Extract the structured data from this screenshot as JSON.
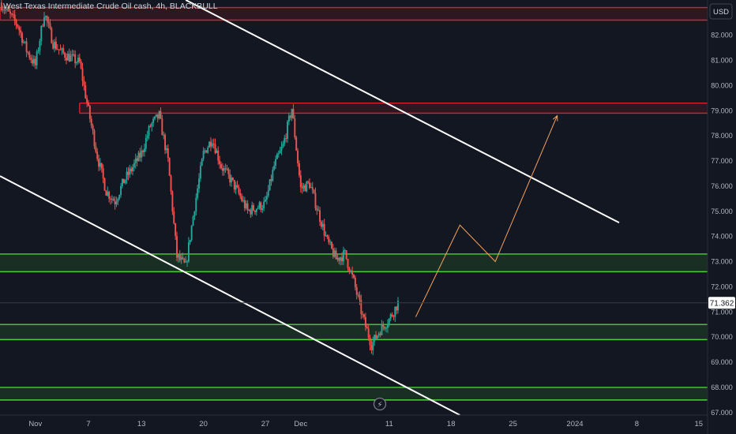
{
  "title": "West Texas Intermediate Crude Oil cash, 4h, BLACKBULL",
  "currency": "USD",
  "current_price": "71.362",
  "colors": {
    "background": "#131722",
    "up": "#26a69a",
    "down": "#ef5350",
    "resistance": "#e01e26",
    "support": "#4cd137",
    "trendline": "#ffffff",
    "projection": "#f5a25d",
    "price_tag_bg": "#ffffff",
    "event_icon": "#787b86"
  },
  "icons": {
    "event_marker": "lightning-icon"
  },
  "chart_data": {
    "type": "candlestick",
    "title": "West Texas Intermediate Crude Oil cash, 4h, BLACKBULL",
    "ylim": [
      66.9,
      83.4
    ],
    "yticks": [
      67,
      68,
      69,
      70,
      71,
      72,
      73,
      74,
      75,
      76,
      77,
      78,
      79,
      80,
      81,
      82
    ],
    "ytick_labels": [
      "67.000",
      "68.000",
      "69.000",
      "70.000",
      "71.000",
      "72.000",
      "73.000",
      "74.000",
      "75.000",
      "76.000",
      "77.000",
      "78.000",
      "79.000",
      "80.000",
      "81.000",
      "82.000"
    ],
    "x_range": [
      "2023-10-28",
      "2024-01-16"
    ],
    "xticks": [
      {
        "date": "2023-11-01",
        "label": "Nov"
      },
      {
        "date": "2023-11-07",
        "label": "7"
      },
      {
        "date": "2023-11-13",
        "label": "13"
      },
      {
        "date": "2023-11-20",
        "label": "20"
      },
      {
        "date": "2023-11-27",
        "label": "27"
      },
      {
        "date": "2023-12-01",
        "label": "Dec"
      },
      {
        "date": "2023-12-11",
        "label": "11"
      },
      {
        "date": "2023-12-18",
        "label": "18"
      },
      {
        "date": "2023-12-25",
        "label": "25"
      },
      {
        "date": "2024-01-01",
        "label": "2024"
      },
      {
        "date": "2024-01-08",
        "label": "8"
      },
      {
        "date": "2024-01-15",
        "label": "15"
      }
    ],
    "price_anchors": [
      [
        "2023-10-28",
        83.3
      ],
      [
        "2023-10-30",
        82.4
      ],
      [
        "2023-10-31",
        81.4
      ],
      [
        "2023-11-01",
        80.8
      ],
      [
        "2023-11-02",
        82.9
      ],
      [
        "2023-11-03",
        81.7
      ],
      [
        "2023-11-04",
        81.3
      ],
      [
        "2023-11-06",
        80.9
      ],
      [
        "2023-11-07",
        79.0
      ],
      [
        "2023-11-08",
        77.2
      ],
      [
        "2023-11-09",
        75.8
      ],
      [
        "2023-11-10",
        75.4
      ],
      [
        "2023-11-11",
        76.2
      ],
      [
        "2023-11-13",
        77.3
      ],
      [
        "2023-11-14",
        78.4
      ],
      [
        "2023-11-15",
        78.8
      ],
      [
        "2023-11-16",
        77.0
      ],
      [
        "2023-11-17",
        73.2
      ],
      [
        "2023-11-18",
        72.8
      ],
      [
        "2023-11-19",
        75.2
      ],
      [
        "2023-11-20",
        77.3
      ],
      [
        "2023-11-21",
        77.9
      ],
      [
        "2023-11-22",
        76.8
      ],
      [
        "2023-11-23",
        76.3
      ],
      [
        "2023-11-24",
        75.7
      ],
      [
        "2023-11-25",
        75.0
      ],
      [
        "2023-11-27",
        75.3
      ],
      [
        "2023-11-28",
        76.8
      ],
      [
        "2023-11-29",
        77.6
      ],
      [
        "2023-11-30",
        79.1
      ],
      [
        "2023-12-01",
        75.9
      ],
      [
        "2023-12-02",
        76.1
      ],
      [
        "2023-12-04",
        73.8
      ],
      [
        "2023-12-05",
        73.1
      ],
      [
        "2023-12-06",
        73.3
      ],
      [
        "2023-12-07",
        72.2
      ],
      [
        "2023-12-08",
        70.8
      ],
      [
        "2023-12-09",
        69.7
      ],
      [
        "2023-12-10",
        70.3
      ],
      [
        "2023-12-11",
        70.7
      ],
      [
        "2023-12-12",
        71.36
      ]
    ],
    "series": [
      {
        "type": "horizontal-zone",
        "role": "resistance",
        "ymin": 82.6,
        "ymax": 83.1,
        "x_start": "2023-10-28",
        "x_end": "2024-01-16"
      },
      {
        "type": "horizontal-zone",
        "role": "resistance",
        "ymin": 78.9,
        "ymax": 79.3,
        "x_start": "2023-11-06",
        "x_end": "2024-01-16"
      },
      {
        "type": "horizontal-zone",
        "role": "support",
        "ymin": 72.6,
        "ymax": 73.3,
        "x_start": "2023-10-28",
        "x_end": "2024-01-16"
      },
      {
        "type": "horizontal-zone",
        "role": "support",
        "ymin": 69.9,
        "ymax": 70.5,
        "x_start": "2023-10-28",
        "x_end": "2024-01-16"
      },
      {
        "type": "horizontal-zone",
        "role": "support",
        "ymin": 67.5,
        "ymax": 68.0,
        "x_start": "2023-10-28",
        "x_end": "2024-01-16"
      },
      {
        "type": "trendline",
        "points": [
          [
            "2023-11-18",
            83.4
          ],
          [
            "2024-01-06",
            74.55
          ]
        ]
      },
      {
        "type": "trendline",
        "points": [
          [
            "2023-10-28",
            76.4
          ],
          [
            "2023-12-19",
            66.9
          ]
        ]
      },
      {
        "type": "projection",
        "points": [
          [
            "2023-12-14",
            70.8
          ],
          [
            "2023-12-19",
            74.45
          ],
          [
            "2023-12-23",
            73.0
          ],
          [
            "2023-12-30",
            78.8
          ]
        ]
      }
    ]
  }
}
